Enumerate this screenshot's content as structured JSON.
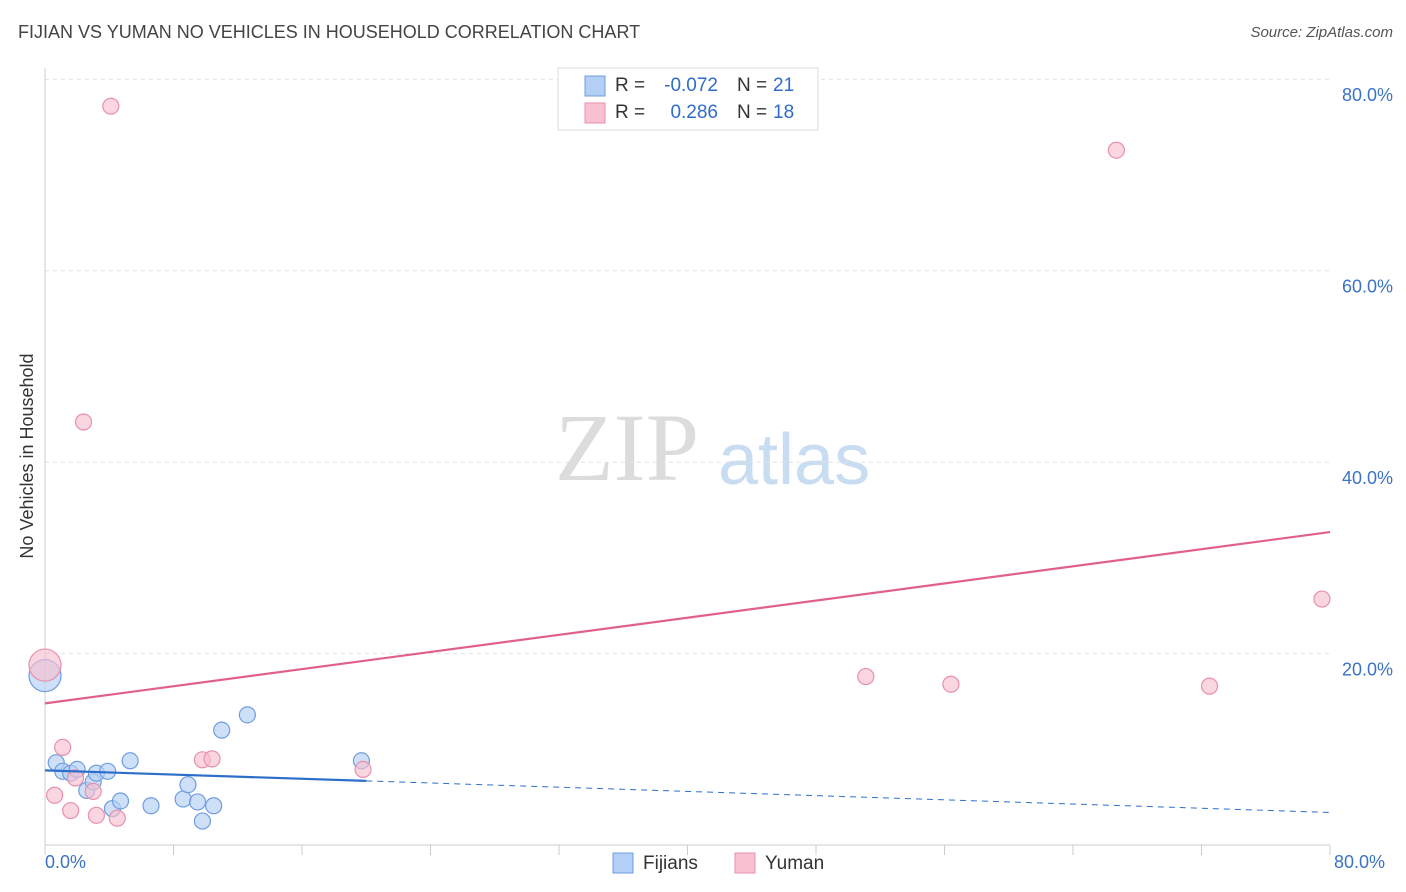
{
  "chart_data": {
    "type": "scatter",
    "title": "FIJIAN VS YUMAN NO VEHICLES IN HOUSEHOLD CORRELATION CHART",
    "source": "Source: ZipAtlas.com",
    "y_label": "No Vehicles in Household",
    "watermark": [
      "ZIP",
      "atlas"
    ],
    "legend_r_label": "R =",
    "legend_n_label": "N =",
    "xlim": [
      0,
      80
    ],
    "ylim": [
      0,
      82
    ],
    "xticks": [
      {
        "value": 0,
        "label": "0.0%"
      },
      {
        "value": 80,
        "label": "80.0%"
      }
    ],
    "xtick_marks": [
      0,
      8,
      16,
      24,
      32,
      40,
      48,
      56,
      64,
      72,
      80
    ],
    "yticks": [
      {
        "value": 20,
        "label": "20.0%"
      },
      {
        "value": 40,
        "label": "40.0%"
      },
      {
        "value": 60,
        "label": "60.0%"
      },
      {
        "value": 80,
        "label": "80.0%"
      }
    ],
    "grid": true,
    "series": [
      {
        "name": "Fijians",
        "color": "#b3cff5",
        "edge": "#6f9ee0",
        "line_color": "#2c6fca",
        "r": -0.072,
        "n": 21,
        "x": [
          0,
          0.7,
          1.1,
          1.6,
          2.0,
          2.6,
          3.0,
          3.2,
          3.9,
          4.2,
          4.7,
          5.3,
          6.6,
          8.6,
          8.9,
          9.5,
          9.8,
          10.5,
          11.0,
          12.6,
          19.7
        ],
        "values": [
          17.7,
          8.6,
          7.7,
          7.5,
          7.9,
          5.7,
          6.6,
          7.5,
          7.7,
          3.8,
          4.6,
          8.8,
          4.1,
          4.8,
          6.3,
          4.5,
          2.5,
          4.1,
          12.0,
          13.6,
          8.8
        ],
        "sizes": [
          4,
          1,
          1,
          1,
          1,
          1,
          1,
          1,
          1,
          1,
          1,
          1,
          1,
          1,
          1,
          1,
          1,
          1,
          1,
          1,
          1
        ],
        "trend": {
          "x": [
            0,
            20,
            80
          ],
          "y": [
            7.8,
            6.7,
            3.4
          ]
        }
      },
      {
        "name": "Yuman",
        "color": "#f8c0d0",
        "edge": "#e890aa",
        "line_color": "#e0608a",
        "r": 0.286,
        "n": 18,
        "x": [
          0,
          0.6,
          1.1,
          1.6,
          1.9,
          2.4,
          3.0,
          3.2,
          4.1,
          4.5,
          9.8,
          10.4,
          19.8,
          51.1,
          56.4,
          66.7,
          72.5,
          79.5
        ],
        "values": [
          18.8,
          5.2,
          10.2,
          3.6,
          7.0,
          44.2,
          5.6,
          3.1,
          77.2,
          2.8,
          8.9,
          9.0,
          7.9,
          17.6,
          16.8,
          72.6,
          16.6,
          25.7
        ],
        "sizes": [
          4,
          1,
          1,
          1,
          1,
          1,
          1,
          1,
          1,
          1,
          1,
          1,
          1,
          1,
          1,
          1,
          1,
          1
        ],
        "trend": {
          "x": [
            0,
            80
          ],
          "y": [
            14.8,
            32.7
          ]
        }
      }
    ]
  }
}
